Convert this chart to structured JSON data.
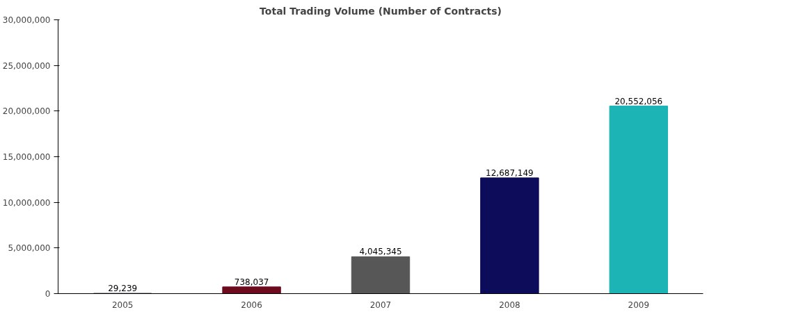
{
  "chart_data": {
    "type": "bar",
    "title": "Total Trading Volume (Number of Contracts)",
    "categories": [
      "2005",
      "2006",
      "2007",
      "2008",
      "2009"
    ],
    "values": [
      29239,
      738037,
      4045345,
      12687149,
      20552056
    ],
    "colors": [
      "#1a1a3a",
      "#6e0a1e",
      "#575757",
      "#0c0c5a",
      "#1cb4b4"
    ],
    "ylim": [
      0,
      30000000
    ],
    "yticks": [
      {
        "value": 0,
        "label": "0"
      },
      {
        "value": 5000000,
        "label": "5,000,000"
      },
      {
        "value": 10000000,
        "label": "10,000,000"
      },
      {
        "value": 15000000,
        "label": "15,000,000"
      },
      {
        "value": 20000000,
        "label": "20,000,000"
      },
      {
        "value": 25000000,
        "label": "25,000,000"
      },
      {
        "value": 30000000,
        "label": "30,000,000"
      }
    ],
    "value_labels": [
      "29,239",
      "738,037",
      "4,045,345",
      "12,687,149",
      "20,552,056"
    ],
    "grid": false
  }
}
